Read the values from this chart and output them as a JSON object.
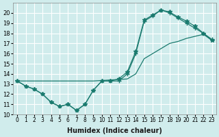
{
  "xlabel": "Humidex (Indice chaleur)",
  "ylabel": "",
  "bg_color": "#d0ecec",
  "grid_color": "#ffffff",
  "line_color": "#1a7a6e",
  "xlim": [
    -0.5,
    23.5
  ],
  "ylim": [
    10,
    21
  ],
  "yticks": [
    10,
    11,
    12,
    13,
    14,
    15,
    16,
    17,
    18,
    19,
    20
  ],
  "xticks": [
    0,
    1,
    2,
    3,
    4,
    5,
    6,
    7,
    8,
    9,
    10,
    11,
    12,
    13,
    14,
    15,
    16,
    17,
    18,
    19,
    20,
    21,
    22,
    23
  ],
  "line1_x": [
    0,
    1,
    2,
    3,
    4,
    5,
    6,
    7,
    8,
    9,
    10,
    11,
    12,
    13,
    14,
    15,
    16,
    17,
    18,
    19,
    20,
    21,
    22,
    23
  ],
  "line1_y": [
    13.3,
    12.8,
    12.5,
    12.0,
    11.2,
    10.8,
    11.0,
    10.4,
    11.0,
    12.4,
    13.3,
    13.3,
    13.3,
    14.0,
    16.0,
    19.2,
    19.7,
    20.3,
    20.0,
    19.5,
    19.0,
    18.5,
    18.0,
    17.4
  ],
  "line2_x": [
    0,
    1,
    2,
    3,
    4,
    5,
    6,
    7,
    8,
    9,
    10,
    11,
    12,
    13,
    14,
    15,
    16,
    17,
    18,
    19,
    20,
    21,
    22,
    23
  ],
  "line2_y": [
    13.3,
    12.8,
    12.5,
    12.0,
    11.2,
    10.8,
    11.0,
    10.4,
    11.0,
    12.4,
    13.3,
    13.3,
    13.5,
    14.2,
    16.2,
    19.3,
    19.8,
    20.3,
    20.1,
    19.6,
    19.2,
    18.7,
    18.0,
    17.3
  ],
  "line3_x": [
    0,
    9,
    13,
    14,
    15,
    16,
    17,
    18,
    19,
    20,
    21,
    22,
    23
  ],
  "line3_y": [
    13.3,
    13.3,
    13.5,
    14.0,
    15.5,
    16.0,
    16.5,
    17.0,
    17.2,
    17.5,
    17.7,
    17.9,
    17.3
  ]
}
